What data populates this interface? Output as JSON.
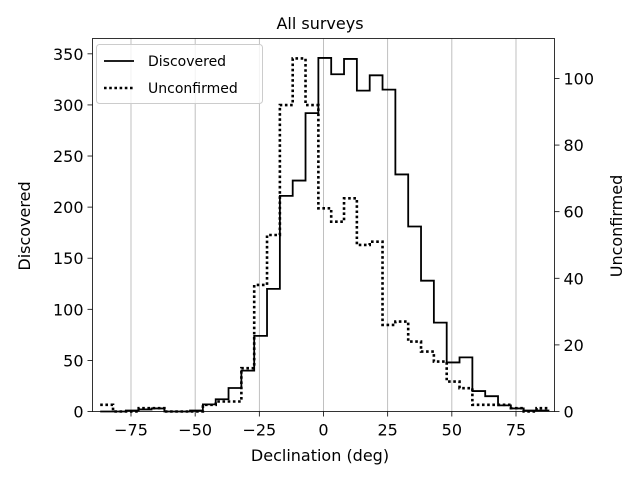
{
  "chart_data": {
    "type": "histogram-step",
    "title": "All surveys",
    "xlabel": "Declination (deg)",
    "ylabel_left": "Discovered",
    "ylabel_right": "Unconfirmed",
    "xlim": [
      -90,
      90
    ],
    "ylim_left": [
      0,
      365
    ],
    "ylim_right": [
      0,
      112
    ],
    "xticks": [
      -75,
      -50,
      -25,
      0,
      25,
      50,
      75
    ],
    "xtick_labels": [
      "−75",
      "−50",
      "−25",
      "0",
      "25",
      "50",
      "75"
    ],
    "yticks_left": [
      0,
      50,
      100,
      150,
      200,
      250,
      300,
      350
    ],
    "yticks_left_labels": [
      "0",
      "50",
      "100",
      "150",
      "200",
      "250",
      "300",
      "350"
    ],
    "yticks_right": [
      0,
      20,
      40,
      60,
      80,
      100
    ],
    "yticks_right_labels": [
      "0",
      "20",
      "40",
      "60",
      "80",
      "100"
    ],
    "grid": "vertical",
    "legend_position": "upper-left",
    "bin_edges": [
      -87,
      -82,
      -77,
      -72,
      -67,
      -62,
      -57,
      -52,
      -47,
      -42,
      -37,
      -32,
      -27,
      -22,
      -17,
      -12,
      -7,
      -2,
      3,
      8,
      13,
      18,
      23,
      28,
      33,
      38,
      43,
      48,
      53,
      58,
      63,
      68,
      73,
      78,
      83,
      88
    ],
    "series": [
      {
        "name": "Discovered",
        "axis": "left",
        "style": "solid",
        "values": [
          0,
          0,
          1,
          2,
          3,
          0,
          0,
          1,
          7,
          12,
          23,
          40,
          74,
          120,
          211,
          226,
          292,
          346,
          330,
          345,
          314,
          329,
          315,
          232,
          181,
          128,
          87,
          48,
          53,
          20,
          15,
          6,
          3,
          1,
          1
        ]
      },
      {
        "name": "Unconfirmed",
        "axis": "right",
        "style": "dotted",
        "values": [
          2,
          0,
          0,
          1,
          1,
          0,
          0,
          0,
          2,
          3,
          3,
          13,
          38,
          53,
          92,
          106,
          92,
          61,
          57,
          64,
          50,
          51,
          26,
          27,
          21,
          18,
          15,
          9,
          7,
          2,
          2,
          2,
          1,
          0,
          1
        ]
      }
    ]
  }
}
